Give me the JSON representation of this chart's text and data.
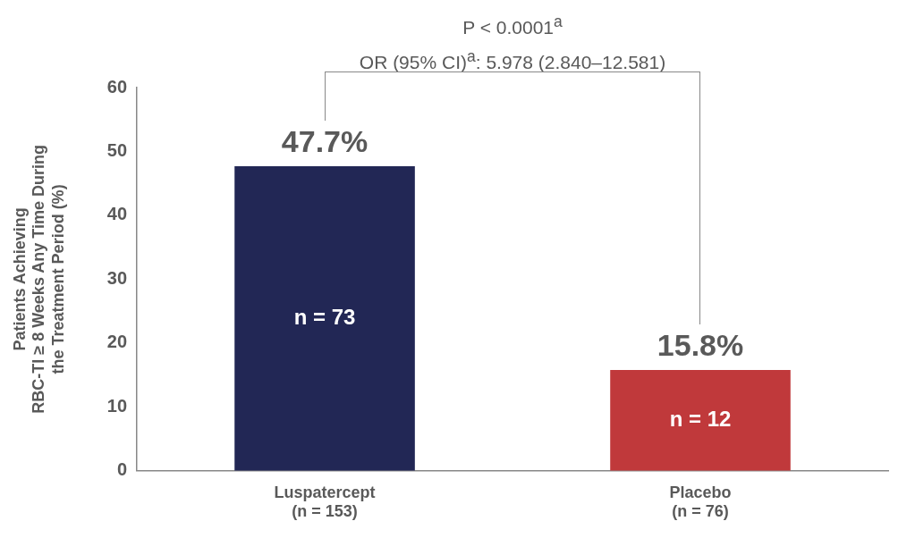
{
  "chart_data": {
    "type": "bar",
    "categories": [
      "Luspatercept\n(n = 153)",
      "Placebo\n(n = 76)"
    ],
    "values": [
      47.7,
      15.8
    ],
    "colors": [
      "#222755",
      "#c0393b"
    ],
    "value_labels": [
      "47.7%",
      "15.8%"
    ],
    "ylabel": "Patients Achieving\nRBC-TI ≥ 8 Weeks Any Time During\nthe Treatment Period (%)",
    "ylim": [
      0,
      60
    ],
    "yticks": [
      0,
      10,
      20,
      30,
      40,
      50,
      60
    ],
    "grid": false,
    "legend": false,
    "annotations": [
      "P < 0.0001$^{a}$",
      "OR (95% CI)$^{a}$: 5.978 (2.840–12.581)",
      "n = 73",
      "n = 12"
    ]
  }
}
